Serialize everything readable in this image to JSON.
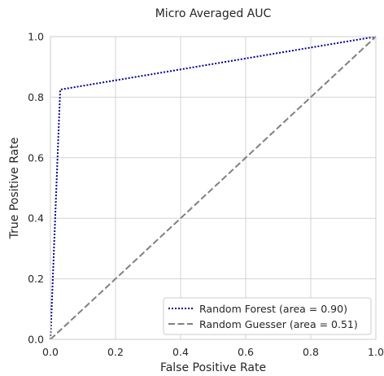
{
  "chart_data": {
    "type": "line",
    "title": "Micro Averaged AUC",
    "xlabel": "False Positive Rate",
    "ylabel": "True Positive Rate",
    "xlim": [
      0.0,
      1.0
    ],
    "ylim": [
      0.0,
      1.0
    ],
    "xticks": [
      "0.0",
      "0.2",
      "0.4",
      "0.6",
      "0.8",
      "1.0"
    ],
    "yticks": [
      "0.0",
      "0.2",
      "0.4",
      "0.6",
      "0.8",
      "1.0"
    ],
    "grid": true,
    "legend_position": "lower-right",
    "series": [
      {
        "name": "Random Forest (area = 0.90)",
        "style": "dotted",
        "color": "#00008b",
        "x": [
          0.0,
          0.03,
          1.0
        ],
        "y": [
          0.0,
          0.825,
          1.0
        ]
      },
      {
        "name": "Random Guesser (area = 0.51)",
        "style": "dashed",
        "color": "#808080",
        "x": [
          0.0,
          1.0
        ],
        "y": [
          0.0,
          1.0
        ]
      }
    ]
  }
}
